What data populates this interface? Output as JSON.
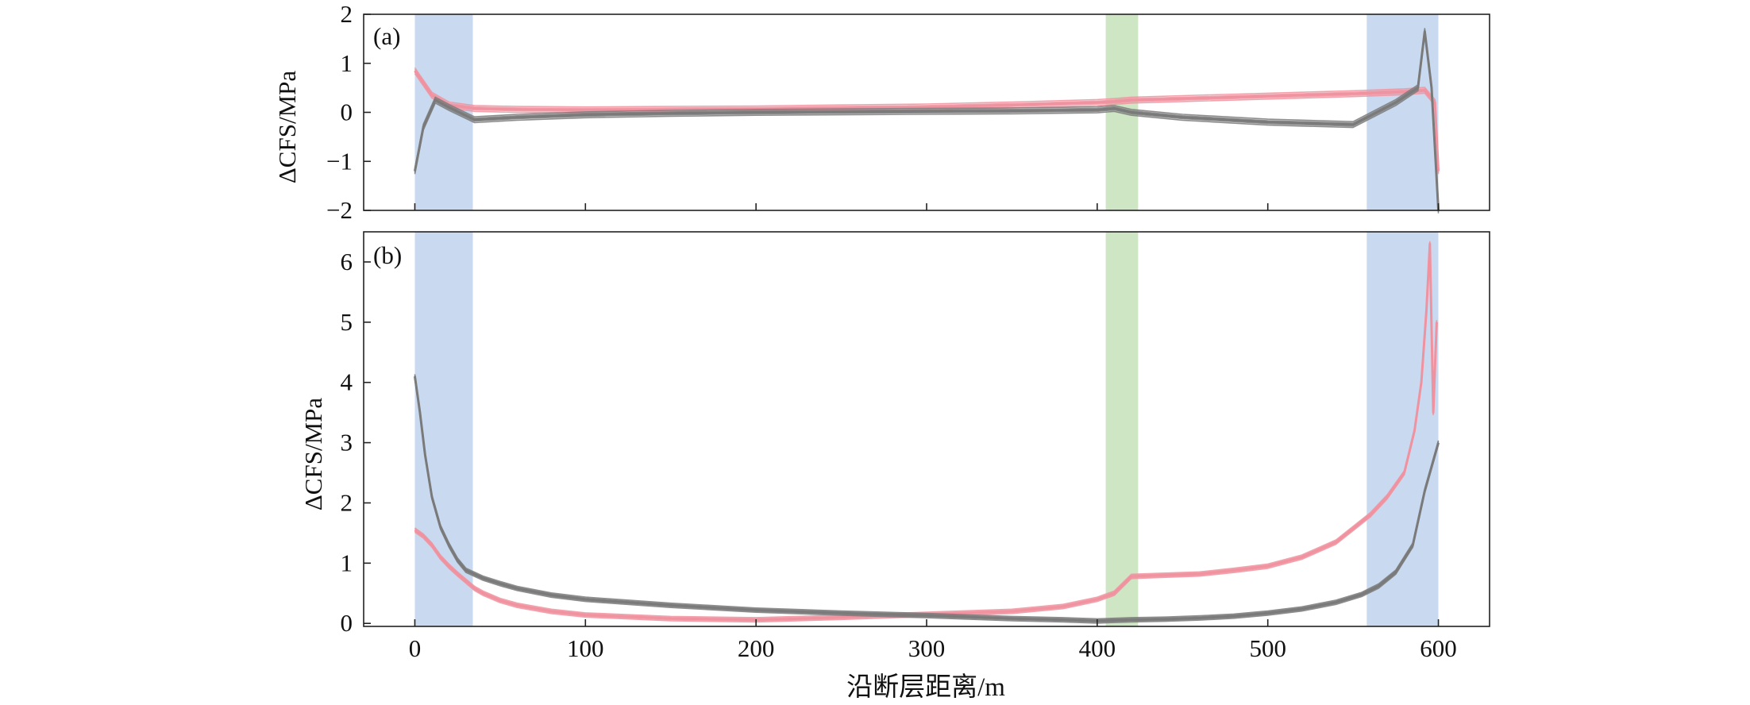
{
  "chart_data": [
    {
      "type": "line",
      "panel_label": "(a)",
      "ylabel": "ΔCFS/MPa",
      "xlim": [
        -30,
        630
      ],
      "ylim": [
        -2,
        2
      ],
      "y_ticks": [
        2,
        1,
        0,
        -1,
        -2
      ],
      "y_tick_labels": [
        "2",
        "1",
        "0",
        "−1",
        "−2"
      ],
      "x_ticks": [
        0,
        100,
        200,
        300,
        400,
        500,
        600
      ],
      "x_tick_labels_shown": false,
      "grid": false,
      "shaded_regions": [
        {
          "x": [
            0,
            34
          ],
          "color": "#c9daf0"
        },
        {
          "x": [
            405,
            424
          ],
          "color": "#cfe6c5"
        },
        {
          "x": [
            558,
            600
          ],
          "color": "#c9daf0"
        }
      ],
      "series": [
        {
          "color": "#f0929f",
          "x": [
            0,
            10,
            20,
            35,
            60,
            100,
            150,
            200,
            250,
            300,
            350,
            400,
            410,
            420,
            450,
            500,
            550,
            580,
            592,
            598,
            600
          ],
          "y": [
            0.85,
            0.35,
            0.15,
            0.08,
            0.06,
            0.05,
            0.06,
            0.07,
            0.09,
            0.11,
            0.15,
            0.2,
            0.22,
            0.25,
            0.28,
            0.33,
            0.38,
            0.42,
            0.45,
            0.2,
            -1.2
          ]
        },
        {
          "color": "#7a7a7a",
          "x": [
            0,
            5,
            12,
            20,
            35,
            60,
            100,
            150,
            200,
            250,
            300,
            350,
            400,
            410,
            420,
            450,
            500,
            550,
            575,
            588,
            592,
            596,
            600
          ],
          "y": [
            -1.2,
            -0.3,
            0.25,
            0.1,
            -0.15,
            -0.1,
            -0.05,
            -0.02,
            0.0,
            0.01,
            0.02,
            0.03,
            0.05,
            0.08,
            0.0,
            -0.1,
            -0.2,
            -0.25,
            0.2,
            0.5,
            1.65,
            0.5,
            -2.0
          ]
        }
      ]
    },
    {
      "type": "line",
      "panel_label": "(b)",
      "xlabel": "沿断层距离/m",
      "ylabel": "ΔCFS/MPa",
      "xlim": [
        -30,
        630
      ],
      "ylim": [
        -0.05,
        6.5
      ],
      "y_ticks": [
        0,
        1,
        2,
        3,
        4,
        5,
        6
      ],
      "y_tick_labels": [
        "0",
        "1",
        "2",
        "3",
        "4",
        "5",
        "6"
      ],
      "x_ticks": [
        0,
        100,
        200,
        300,
        400,
        500,
        600
      ],
      "x_tick_labels": [
        "0",
        "100",
        "200",
        "300",
        "400",
        "500",
        "600"
      ],
      "grid": false,
      "shaded_regions": [
        {
          "x": [
            0,
            34
          ],
          "color": "#c9daf0"
        },
        {
          "x": [
            405,
            424
          ],
          "color": "#cfe6c5"
        },
        {
          "x": [
            558,
            600
          ],
          "color": "#c9daf0"
        }
      ],
      "series": [
        {
          "color": "#f0929f",
          "x": [
            0,
            5,
            10,
            15,
            20,
            25,
            30,
            35,
            40,
            50,
            60,
            80,
            100,
            150,
            200,
            250,
            300,
            350,
            380,
            400,
            405,
            410,
            420,
            440,
            460,
            480,
            500,
            520,
            540,
            560,
            570,
            580,
            586,
            590,
            593,
            595,
            597,
            599
          ],
          "y": [
            1.55,
            1.45,
            1.3,
            1.1,
            0.95,
            0.82,
            0.7,
            0.58,
            0.5,
            0.38,
            0.3,
            0.2,
            0.14,
            0.08,
            0.06,
            0.1,
            0.15,
            0.2,
            0.28,
            0.4,
            0.45,
            0.5,
            0.78,
            0.8,
            0.82,
            0.88,
            0.95,
            1.1,
            1.35,
            1.8,
            2.1,
            2.5,
            3.2,
            4.0,
            5.2,
            6.3,
            3.5,
            5.0
          ]
        },
        {
          "color": "#7a7a7a",
          "x": [
            0,
            3,
            6,
            10,
            15,
            20,
            25,
            30,
            40,
            50,
            60,
            80,
            100,
            150,
            200,
            250,
            300,
            350,
            380,
            400,
            410,
            420,
            440,
            460,
            480,
            500,
            520,
            540,
            555,
            565,
            575,
            585,
            592,
            600
          ],
          "y": [
            4.1,
            3.5,
            2.8,
            2.1,
            1.6,
            1.3,
            1.05,
            0.88,
            0.75,
            0.66,
            0.58,
            0.47,
            0.4,
            0.3,
            0.22,
            0.17,
            0.13,
            0.08,
            0.06,
            0.04,
            0.05,
            0.06,
            0.07,
            0.09,
            0.12,
            0.17,
            0.24,
            0.35,
            0.48,
            0.62,
            0.85,
            1.3,
            2.2,
            3.0
          ]
        }
      ]
    }
  ]
}
